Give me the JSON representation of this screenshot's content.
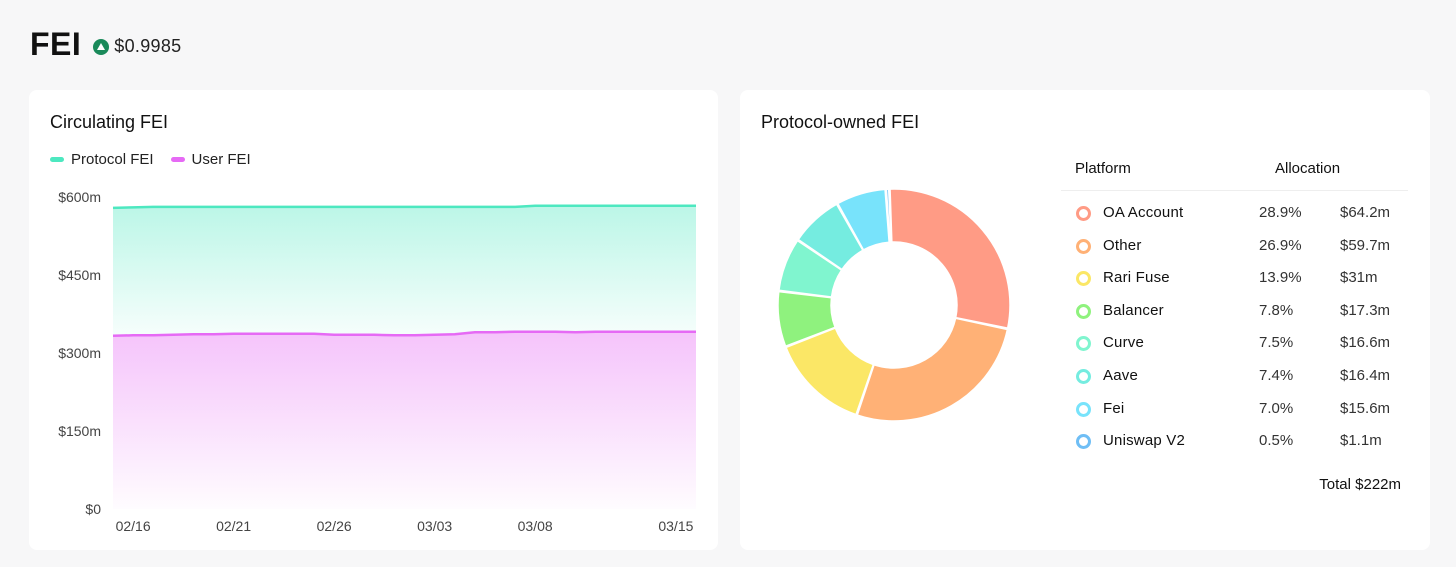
{
  "header": {
    "token": "FEI",
    "price": "$0.9985"
  },
  "colors": {
    "protocol": "#4de8c0",
    "user": "#e66af5",
    "peg_icon": "#1a8a5a"
  },
  "circulating": {
    "title": "Circulating FEI",
    "legend": [
      "Protocol FEI",
      "User FEI"
    ],
    "y_ticks": [
      "$600m",
      "$450m",
      "$300m",
      "$150m",
      "$0"
    ],
    "x_ticks": [
      "02/16",
      "02/21",
      "02/26",
      "03/03",
      "03/08",
      "03/15"
    ]
  },
  "protocol_owned": {
    "title": "Protocol-owned FEI",
    "col_platform": "Platform",
    "col_allocation": "Allocation",
    "total": "Total $222m",
    "rows": [
      {
        "name": "OA Account",
        "pct": "28.9%",
        "value": "$64.2m",
        "color": "#ff9b85"
      },
      {
        "name": "Other",
        "pct": "26.9%",
        "value": "$59.7m",
        "color": "#ffb176"
      },
      {
        "name": "Rari Fuse",
        "pct": "13.9%",
        "value": "$31m",
        "color": "#fbe766"
      },
      {
        "name": "Balancer",
        "pct": "7.8%",
        "value": "$17.3m",
        "color": "#8ff27e"
      },
      {
        "name": "Curve",
        "pct": "7.5%",
        "value": "$16.6m",
        "color": "#80f5cf"
      },
      {
        "name": "Aave",
        "pct": "7.4%",
        "value": "$16.4m",
        "color": "#75ece0"
      },
      {
        "name": "Fei",
        "pct": "7.0%",
        "value": "$15.6m",
        "color": "#78e3fb"
      },
      {
        "name": "Uniswap V2",
        "pct": "0.5%",
        "value": "$1.1m",
        "color": "#6fbef5"
      }
    ]
  },
  "chart_data": [
    {
      "type": "area",
      "title": "Circulating FEI",
      "xlabel": "",
      "ylabel": "",
      "ylim": [
        0,
        600
      ],
      "x_ticks": [
        "02/16",
        "02/21",
        "02/26",
        "03/03",
        "03/08",
        "03/15"
      ],
      "series": [
        {
          "name": "Protocol FEI",
          "color": "#4de8c0",
          "values": [
            579,
            580,
            581,
            581,
            581,
            581,
            581,
            581,
            581,
            581,
            581,
            581,
            581,
            581,
            581,
            581,
            581,
            581,
            581,
            581,
            581,
            583,
            583,
            583,
            583,
            583,
            583,
            583,
            583,
            583
          ]
        },
        {
          "name": "User FEI",
          "color": "#e66af5",
          "values": [
            333,
            334,
            334,
            335,
            336,
            336,
            337,
            337,
            337,
            337,
            337,
            335,
            335,
            335,
            334,
            334,
            335,
            336,
            340,
            340,
            341,
            341,
            341,
            340,
            341,
            341,
            341,
            341,
            341,
            341
          ]
        }
      ]
    },
    {
      "type": "pie",
      "title": "Protocol-owned FEI",
      "donut": true,
      "labels": [
        "OA Account",
        "Other",
        "Rari Fuse",
        "Balancer",
        "Curve",
        "Aave",
        "Fei",
        "Uniswap V2"
      ],
      "values": [
        28.9,
        26.9,
        13.9,
        7.8,
        7.5,
        7.4,
        7.0,
        0.5
      ],
      "colors": [
        "#ff9b85",
        "#ffb176",
        "#fbe766",
        "#8ff27e",
        "#80f5cf",
        "#75ece0",
        "#78e3fb",
        "#6fbef5"
      ],
      "total": "Total $222m"
    }
  ]
}
